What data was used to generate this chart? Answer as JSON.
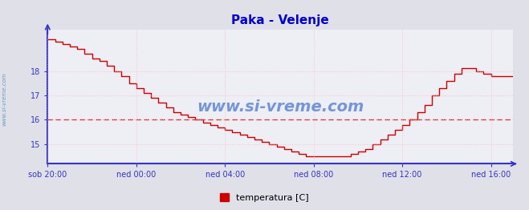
{
  "title": "Paka - Velenje",
  "title_color": "#0000cc",
  "bg_color": "#e0e0e8",
  "plot_bg_color": "#eeeef5",
  "grid_color": "#ffbbbb",
  "axis_color": "#3333cc",
  "line_color": "#cc0000",
  "dashed_line_y": 16.0,
  "dashed_line_color": "#cc0000",
  "watermark": "www.si-vreme.com",
  "watermark_color": "#3366cc",
  "side_watermark": "www.si-vreme.com",
  "side_watermark_color": "#5599bb",
  "legend_label": "temperatura [C]",
  "legend_color": "#cc0000",
  "xtick_positions": [
    0,
    48,
    96,
    144,
    192,
    240
  ],
  "xtick_labels": [
    "sob 20:00",
    "ned 00:00",
    "ned 04:00",
    "ned 08:00",
    "ned 12:00",
    "ned 16:00"
  ],
  "ytick_positions": [
    15,
    16,
    17,
    18
  ],
  "ylim": [
    14.2,
    19.7
  ],
  "xlim_min": 0,
  "xlim_max": 252,
  "x": [
    0,
    4,
    8,
    12,
    16,
    20,
    24,
    28,
    32,
    36,
    40,
    44,
    48,
    52,
    56,
    60,
    64,
    68,
    72,
    76,
    80,
    84,
    88,
    92,
    96,
    100,
    104,
    108,
    112,
    116,
    120,
    124,
    128,
    132,
    136,
    140,
    144,
    148,
    152,
    156,
    160,
    164,
    168,
    172,
    176,
    180,
    184,
    188,
    192,
    196,
    200,
    204,
    208,
    212,
    216,
    220,
    224,
    228,
    232,
    236,
    240,
    244,
    248,
    252
  ],
  "y": [
    19.3,
    19.2,
    19.1,
    19.0,
    18.9,
    18.7,
    18.5,
    18.4,
    18.2,
    18.0,
    17.8,
    17.5,
    17.3,
    17.1,
    16.9,
    16.7,
    16.5,
    16.3,
    16.2,
    16.1,
    16.0,
    15.9,
    15.8,
    15.7,
    15.6,
    15.5,
    15.4,
    15.3,
    15.2,
    15.1,
    15.0,
    14.9,
    14.8,
    14.7,
    14.6,
    14.5,
    14.5,
    14.5,
    14.5,
    14.5,
    14.5,
    14.6,
    14.7,
    14.8,
    15.0,
    15.2,
    15.4,
    15.6,
    15.8,
    16.0,
    16.3,
    16.6,
    17.0,
    17.3,
    17.6,
    17.9,
    18.1,
    18.1,
    18.0,
    17.9,
    17.8,
    17.8,
    17.8,
    17.8
  ]
}
